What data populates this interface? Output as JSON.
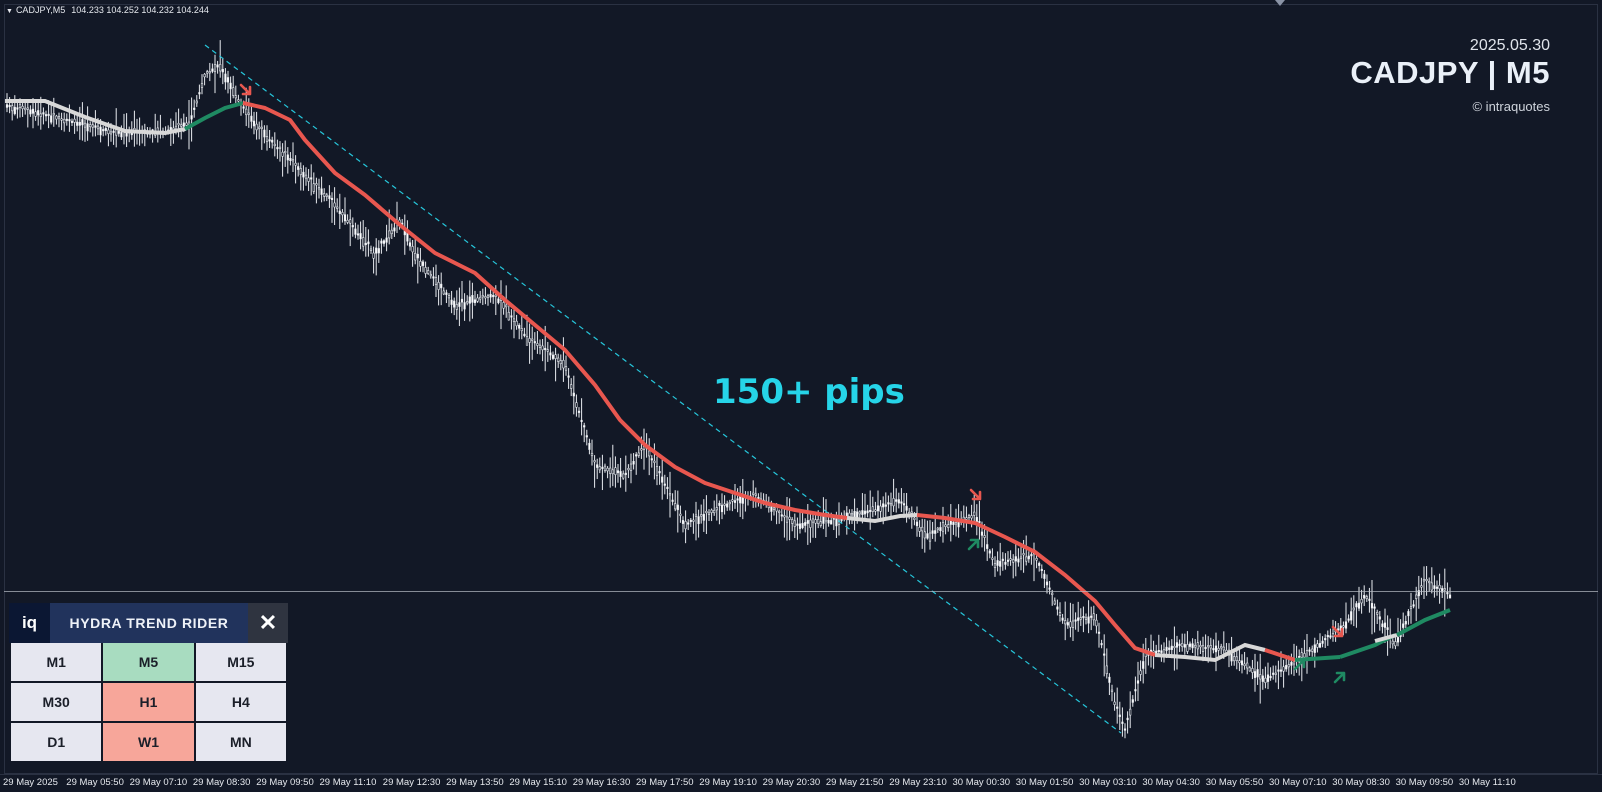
{
  "header": {
    "symbol": "CADJPY,M5",
    "ohlc": "104.233 104.252 104.232 104.244"
  },
  "brand": {
    "date": "2025.05.30",
    "title": "CADJPY | M5",
    "copyright": "© intraquotes"
  },
  "annotation": {
    "text": "150+ pips"
  },
  "colors": {
    "background": "#121826",
    "bear_line": "#e8574f",
    "bull_line": "#1f8a62",
    "neutral_line": "#d8d8d8",
    "trendline": "#26c6da",
    "annotation": "#26d4e8"
  },
  "panel": {
    "logo": "iq",
    "title": "HYDRA TREND RIDER",
    "close_icon": "close-icon",
    "timeframes": [
      {
        "label": "M1",
        "state": "neutral"
      },
      {
        "label": "M5",
        "state": "up"
      },
      {
        "label": "M15",
        "state": "neutral"
      },
      {
        "label": "M30",
        "state": "neutral"
      },
      {
        "label": "H1",
        "state": "down"
      },
      {
        "label": "H4",
        "state": "neutral"
      },
      {
        "label": "D1",
        "state": "neutral"
      },
      {
        "label": "W1",
        "state": "down"
      },
      {
        "label": "MN",
        "state": "neutral"
      }
    ]
  },
  "x_axis": {
    "labels": [
      "29 May 2025",
      "29 May 05:50",
      "29 May 07:10",
      "29 May 08:30",
      "29 May 09:50",
      "29 May 11:10",
      "29 May 12:30",
      "29 May 13:50",
      "29 May 15:10",
      "29 May 16:30",
      "29 May 17:50",
      "29 May 19:10",
      "29 May 20:30",
      "29 May 21:50",
      "29 May 23:10",
      "30 May 00:30",
      "30 May 01:50",
      "30 May 03:10",
      "30 May 04:30",
      "30 May 05:50",
      "30 May 07:10",
      "30 May 08:30",
      "30 May 09:50",
      "30 May 11:10"
    ]
  },
  "chart_data": {
    "type": "candlestick",
    "symbol": "CADJPY",
    "timeframe": "M5",
    "signals": [
      {
        "type": "sell",
        "near": "29 May 08:30"
      },
      {
        "type": "sell",
        "near": "30 May 00:30"
      },
      {
        "type": "buy",
        "near": "30 May 00:30"
      },
      {
        "type": "buy",
        "near": "30 May 07:10"
      },
      {
        "type": "sell",
        "near": "30 May 08:30"
      },
      {
        "type": "buy",
        "near": "30 May 08:30"
      }
    ],
    "trendline": "descending from 29 May 08:30 high to 30 May 03:10 low",
    "note": "150+ pips"
  }
}
